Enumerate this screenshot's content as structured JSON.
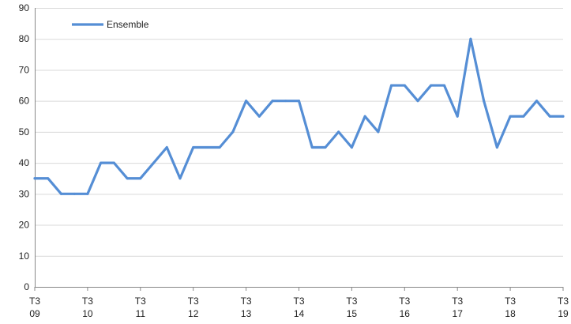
{
  "chart_data": {
    "type": "line",
    "title": "",
    "xlabel": "",
    "ylabel": "",
    "ylim": [
      0,
      90
    ],
    "y_ticks": [
      0,
      10,
      20,
      30,
      40,
      50,
      60,
      70,
      80,
      90
    ],
    "grid": true,
    "legend_position": "top-left",
    "x_tick_labels": [
      {
        "quarter": "T3",
        "year": "09"
      },
      {
        "quarter": "T3",
        "year": "10"
      },
      {
        "quarter": "T3",
        "year": "11"
      },
      {
        "quarter": "T3",
        "year": "12"
      },
      {
        "quarter": "T3",
        "year": "13"
      },
      {
        "quarter": "T3",
        "year": "14"
      },
      {
        "quarter": "T3",
        "year": "15"
      },
      {
        "quarter": "T3",
        "year": "16"
      },
      {
        "quarter": "T3",
        "year": "17"
      },
      {
        "quarter": "T3",
        "year": "18"
      },
      {
        "quarter": "T3",
        "year": "19"
      }
    ],
    "series": [
      {
        "name": "Ensemble",
        "color": "#558ed5",
        "values": [
          35,
          35,
          30,
          30,
          30,
          40,
          40,
          35,
          35,
          40,
          45,
          35,
          45,
          45,
          45,
          50,
          60,
          55,
          60,
          60,
          60,
          45,
          45,
          50,
          45,
          55,
          50,
          65,
          65,
          60,
          65,
          65,
          55,
          80,
          60,
          45,
          55,
          55,
          60,
          55,
          55
        ]
      }
    ]
  }
}
